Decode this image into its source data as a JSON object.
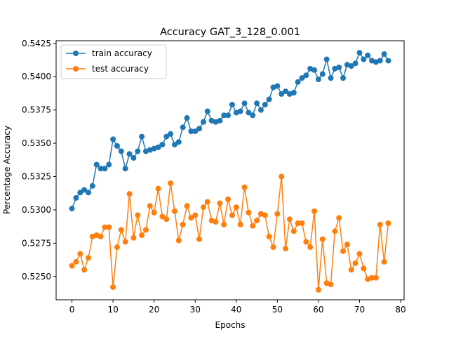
{
  "chart_data": {
    "type": "line",
    "title": "Accuracy GAT_3_128_0.001",
    "xlabel": "Epochs",
    "ylabel": "Percentage Accuracy",
    "xlim": [
      -3.85,
      80.85
    ],
    "ylim": [
      0.52325,
      0.5427
    ],
    "xticks": [
      0,
      10,
      20,
      30,
      40,
      50,
      60,
      70,
      80
    ],
    "yticks": [
      0.525,
      0.5275,
      0.53,
      0.5325,
      0.535,
      0.5375,
      0.54,
      0.5425
    ],
    "xtick_labels": [
      "0",
      "10",
      "20",
      "30",
      "40",
      "50",
      "60",
      "70",
      "80"
    ],
    "ytick_labels": [
      "0.5250",
      "0.5275",
      "0.5300",
      "0.5325",
      "0.5350",
      "0.5375",
      "0.5400",
      "0.5425"
    ],
    "grid": false,
    "legend_position": "top-left",
    "series": [
      {
        "name": "train accuracy",
        "color": "#1f77b4",
        "marker": "circle",
        "values": [
          0.5301,
          0.5309,
          0.5313,
          0.5315,
          0.5313,
          0.5318,
          0.5334,
          0.5331,
          0.5331,
          0.5334,
          0.5353,
          0.5348,
          0.5344,
          0.5331,
          0.5342,
          0.5339,
          0.5344,
          0.5355,
          0.5344,
          0.5345,
          0.5346,
          0.5347,
          0.5349,
          0.5355,
          0.5357,
          0.5349,
          0.5351,
          0.5362,
          0.5369,
          0.5359,
          0.5359,
          0.5361,
          0.5366,
          0.5374,
          0.5367,
          0.5366,
          0.5367,
          0.5371,
          0.5371,
          0.5379,
          0.5373,
          0.5374,
          0.538,
          0.5373,
          0.5371,
          0.538,
          0.5375,
          0.5379,
          0.5383,
          0.5392,
          0.5393,
          0.5387,
          0.5389,
          0.5387,
          0.5388,
          0.5396,
          0.5399,
          0.5401,
          0.5406,
          0.5405,
          0.5398,
          0.5402,
          0.5413,
          0.5399,
          0.5406,
          0.5407,
          0.5399,
          0.5409,
          0.5408,
          0.541,
          0.5418,
          0.5413,
          0.5416,
          0.5412,
          0.5411,
          0.5412,
          0.5417,
          0.5412
        ]
      },
      {
        "name": "test accuracy",
        "color": "#ff7f0e",
        "marker": "circle",
        "values": [
          0.5258,
          0.5261,
          0.5267,
          0.5255,
          0.5264,
          0.528,
          0.5281,
          0.528,
          0.5287,
          0.5287,
          0.5242,
          0.5272,
          0.5285,
          0.5276,
          0.5312,
          0.5279,
          0.5296,
          0.5281,
          0.5285,
          0.5303,
          0.5298,
          0.5316,
          0.5295,
          0.5293,
          0.532,
          0.5299,
          0.5277,
          0.5289,
          0.5303,
          0.5294,
          0.5296,
          0.5278,
          0.5302,
          0.5306,
          0.5292,
          0.5291,
          0.5305,
          0.5289,
          0.5308,
          0.5296,
          0.5302,
          0.5289,
          0.5317,
          0.5298,
          0.5288,
          0.5292,
          0.5297,
          0.5296,
          0.528,
          0.5272,
          0.5297,
          0.5325,
          0.5271,
          0.5293,
          0.5284,
          0.529,
          0.529,
          0.5276,
          0.5272,
          0.5299,
          0.524,
          0.5278,
          0.5245,
          0.5244,
          0.5284,
          0.5294,
          0.5269,
          0.5274,
          0.5255,
          0.526,
          0.5267,
          0.5256,
          0.5248,
          0.5249,
          0.5249,
          0.5289,
          0.5261,
          0.529
        ]
      }
    ]
  }
}
